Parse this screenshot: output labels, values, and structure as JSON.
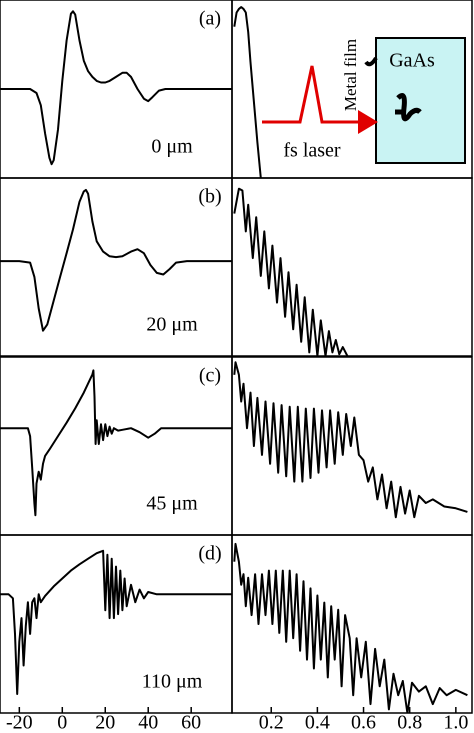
{
  "chart_data": [
    {
      "type": "line",
      "panel_label": "(a)",
      "annotation": "0 μm",
      "color": "#000000",
      "xlim": [
        -29,
        79
      ],
      "ylim": [
        -1.1,
        1.1
      ],
      "x": [
        -29,
        -20,
        -15,
        -12,
        -10,
        -8,
        -6,
        -5,
        -4,
        -2,
        0,
        2,
        4,
        5,
        6,
        8,
        10,
        12,
        14,
        16,
        18,
        20,
        22,
        25,
        28,
        30,
        32,
        35,
        38,
        40,
        42,
        45,
        48,
        55,
        65,
        79
      ],
      "values": [
        0,
        0,
        0,
        -0.05,
        -0.2,
        -0.55,
        -0.85,
        -0.93,
        -0.88,
        -0.5,
        0.1,
        0.6,
        0.93,
        0.96,
        0.92,
        0.6,
        0.35,
        0.22,
        0.15,
        0.1,
        0.08,
        0.08,
        0.1,
        0.15,
        0.2,
        0.2,
        0.15,
        0,
        -0.12,
        -0.15,
        -0.1,
        -0.02,
        0,
        0,
        0,
        0
      ]
    },
    {
      "type": "line",
      "color": "#000000",
      "xlim": [
        0.03,
        1.07
      ],
      "ylim": [
        0,
        1
      ],
      "x": [
        0.04,
        0.05,
        0.06,
        0.07,
        0.08,
        0.09,
        0.1,
        0.11,
        0.12,
        0.13,
        0.14,
        0.155
      ],
      "values": [
        0.85,
        0.93,
        0.95,
        0.96,
        0.95,
        0.93,
        0.82,
        0.65,
        0.5,
        0.35,
        0.2,
        0
      ]
    },
    {
      "type": "line",
      "panel_label": "(b)",
      "annotation": "20 μm",
      "color": "#000000",
      "xlim": [
        -29,
        79
      ],
      "ylim": [
        -1.2,
        1.05
      ],
      "x": [
        -29,
        -20,
        -15,
        -13,
        -11,
        -9,
        -7,
        -4,
        -1,
        2,
        5,
        8,
        10,
        11,
        12,
        14,
        16,
        19,
        22,
        25,
        28,
        32,
        35,
        38,
        41,
        44,
        47,
        50,
        53,
        58,
        65,
        79
      ],
      "values": [
        0,
        0,
        -0.02,
        -0.2,
        -0.6,
        -0.88,
        -0.8,
        -0.5,
        -0.2,
        0.1,
        0.4,
        0.75,
        0.88,
        0.9,
        0.85,
        0.5,
        0.25,
        0.12,
        0.06,
        0.05,
        0.06,
        0.12,
        0.15,
        0.1,
        -0.05,
        -0.15,
        -0.17,
        -0.1,
        -0.02,
        0,
        0,
        0
      ]
    },
    {
      "type": "line",
      "color": "#000000",
      "xlim": [
        0.03,
        1.07
      ],
      "ylim": [
        0,
        1
      ],
      "x": [
        0.04,
        0.06,
        0.075,
        0.09,
        0.1,
        0.12,
        0.135,
        0.155,
        0.17,
        0.19,
        0.205,
        0.225,
        0.24,
        0.26,
        0.275,
        0.295,
        0.31,
        0.33,
        0.345,
        0.365,
        0.38,
        0.4,
        0.415,
        0.435,
        0.45,
        0.465,
        0.48,
        0.495,
        0.51,
        0.53
      ],
      "values": [
        0.8,
        0.94,
        0.93,
        0.7,
        0.85,
        0.55,
        0.78,
        0.45,
        0.7,
        0.38,
        0.62,
        0.3,
        0.55,
        0.22,
        0.47,
        0.15,
        0.4,
        0.08,
        0.33,
        0.02,
        0.26,
        0,
        0.2,
        0,
        0.14,
        0.02,
        0.09,
        0.01,
        0.05,
        0
      ]
    },
    {
      "type": "line",
      "panel_label": "(c)",
      "annotation": "45 μm",
      "color": "#000000",
      "xlim": [
        -29,
        79
      ],
      "ylim": [
        -1.35,
        0.9
      ],
      "x": [
        -29,
        -20,
        -16,
        -15,
        -14,
        -13,
        -12.5,
        -12,
        -11,
        -10,
        -9,
        -8,
        -6,
        -2,
        2,
        6,
        10,
        14,
        14.5,
        15,
        15.5,
        16,
        17,
        18,
        19,
        20,
        21,
        22,
        23,
        24,
        26,
        28,
        32,
        36,
        40,
        43,
        46,
        50,
        60,
        79
      ],
      "values": [
        0,
        0,
        0,
        -0.1,
        -0.5,
        -0.95,
        -1.1,
        -0.7,
        -0.55,
        -0.65,
        -0.45,
        -0.35,
        -0.27,
        -0.1,
        0.07,
        0.25,
        0.45,
        0.68,
        0.73,
        0.4,
        -0.2,
        0.1,
        -0.2,
        0.05,
        -0.15,
        0.05,
        -0.1,
        0.02,
        -0.07,
        0,
        -0.03,
        -0.02,
        0,
        -0.05,
        -0.12,
        -0.07,
        0,
        0,
        0,
        0
      ]
    },
    {
      "type": "line",
      "color": "#000000",
      "xlim": [
        0.03,
        1.07
      ],
      "ylim": [
        0,
        1
      ],
      "x": [
        0.04,
        0.045,
        0.06,
        0.07,
        0.08,
        0.095,
        0.11,
        0.125,
        0.14,
        0.16,
        0.175,
        0.195,
        0.21,
        0.23,
        0.245,
        0.265,
        0.28,
        0.3,
        0.315,
        0.335,
        0.35,
        0.37,
        0.385,
        0.405,
        0.42,
        0.44,
        0.455,
        0.475,
        0.49,
        0.51,
        0.525,
        0.545,
        0.56,
        0.58,
        0.6,
        0.62,
        0.64,
        0.66,
        0.68,
        0.7,
        0.72,
        0.74,
        0.76,
        0.78,
        0.8,
        0.82,
        0.84,
        0.87,
        0.9,
        0.95,
        1.0,
        1.05
      ],
      "values": [
        0.9,
        0.97,
        0.9,
        0.75,
        0.85,
        0.6,
        0.8,
        0.5,
        0.77,
        0.45,
        0.75,
        0.4,
        0.74,
        0.35,
        0.73,
        0.33,
        0.72,
        0.3,
        0.72,
        0.3,
        0.71,
        0.32,
        0.71,
        0.35,
        0.7,
        0.38,
        0.7,
        0.4,
        0.69,
        0.45,
        0.68,
        0.5,
        0.66,
        0.45,
        0.42,
        0.3,
        0.38,
        0.2,
        0.34,
        0.15,
        0.3,
        0.1,
        0.27,
        0.12,
        0.25,
        0.1,
        0.22,
        0.18,
        0.2,
        0.16,
        0.15,
        0.13
      ]
    },
    {
      "type": "line",
      "panel_label": "(d)",
      "annotation": "110 μm",
      "color": "#000000",
      "xlim": [
        -29,
        79
      ],
      "ylim": [
        -1.5,
        0.75
      ],
      "x": [
        -29,
        -25,
        -23,
        -22,
        -21,
        -20,
        -19,
        -18,
        -17,
        -16,
        -15,
        -14,
        -13,
        -12,
        -11,
        -10,
        -8,
        -4,
        0,
        4,
        8,
        12,
        16,
        19,
        20,
        21,
        22,
        23,
        24,
        25,
        26,
        27,
        28,
        29,
        30,
        32,
        34,
        36,
        38,
        40,
        44,
        50,
        60,
        79
      ],
      "values": [
        0,
        0,
        -0.05,
        -0.5,
        -1.26,
        -0.6,
        -0.3,
        -0.9,
        -0.4,
        -0.1,
        -0.5,
        -0.1,
        -0.05,
        -0.3,
        0,
        -0.1,
        -0.02,
        0.1,
        0.2,
        0.3,
        0.38,
        0.45,
        0.52,
        0.55,
        -0.2,
        0.5,
        -0.3,
        0.45,
        -0.3,
        0.35,
        -0.25,
        0.3,
        -0.2,
        0.2,
        -0.15,
        0.12,
        -0.1,
        0.06,
        -0.05,
        0.03,
        0,
        0,
        0,
        0
      ],
      "xticks": [
        -20,
        0,
        20,
        40,
        60
      ]
    },
    {
      "type": "line",
      "color": "#000000",
      "xlim": [
        0.03,
        1.07
      ],
      "ylim": [
        0,
        1
      ],
      "x": [
        0.04,
        0.045,
        0.06,
        0.07,
        0.08,
        0.09,
        0.1,
        0.115,
        0.13,
        0.145,
        0.16,
        0.175,
        0.19,
        0.205,
        0.22,
        0.235,
        0.25,
        0.265,
        0.28,
        0.295,
        0.31,
        0.325,
        0.34,
        0.355,
        0.37,
        0.385,
        0.4,
        0.415,
        0.43,
        0.445,
        0.46,
        0.475,
        0.49,
        0.505,
        0.52,
        0.54,
        0.555,
        0.57,
        0.59,
        0.61,
        0.63,
        0.65,
        0.67,
        0.69,
        0.71,
        0.73,
        0.75,
        0.77,
        0.79,
        0.81,
        0.84,
        0.87,
        0.9,
        0.93,
        0.96,
        1.0,
        1.05
      ],
      "values": [
        0.85,
        0.95,
        0.85,
        0.72,
        0.78,
        0.6,
        0.76,
        0.55,
        0.78,
        0.5,
        0.78,
        0.55,
        0.8,
        0.5,
        0.8,
        0.45,
        0.8,
        0.4,
        0.8,
        0.42,
        0.78,
        0.35,
        0.74,
        0.3,
        0.7,
        0.25,
        0.66,
        0.3,
        0.62,
        0.2,
        0.6,
        0.3,
        0.58,
        0.15,
        0.55,
        0.42,
        0.1,
        0.42,
        0.2,
        0.4,
        0.05,
        0.36,
        0.15,
        0.3,
        0.02,
        0.22,
        0.1,
        0.18,
        0,
        0.17,
        0.12,
        0.15,
        0.05,
        0.14,
        0.1,
        0.13,
        0.1
      ],
      "xticks": [
        0.2,
        0.4,
        0.6,
        0.8,
        {
          "value": 1,
          "label": "1.0"
        }
      ]
    }
  ],
  "inset": {
    "metal_label": "Metal film",
    "material_label": "GaAs",
    "laser_label": "fs laser"
  }
}
